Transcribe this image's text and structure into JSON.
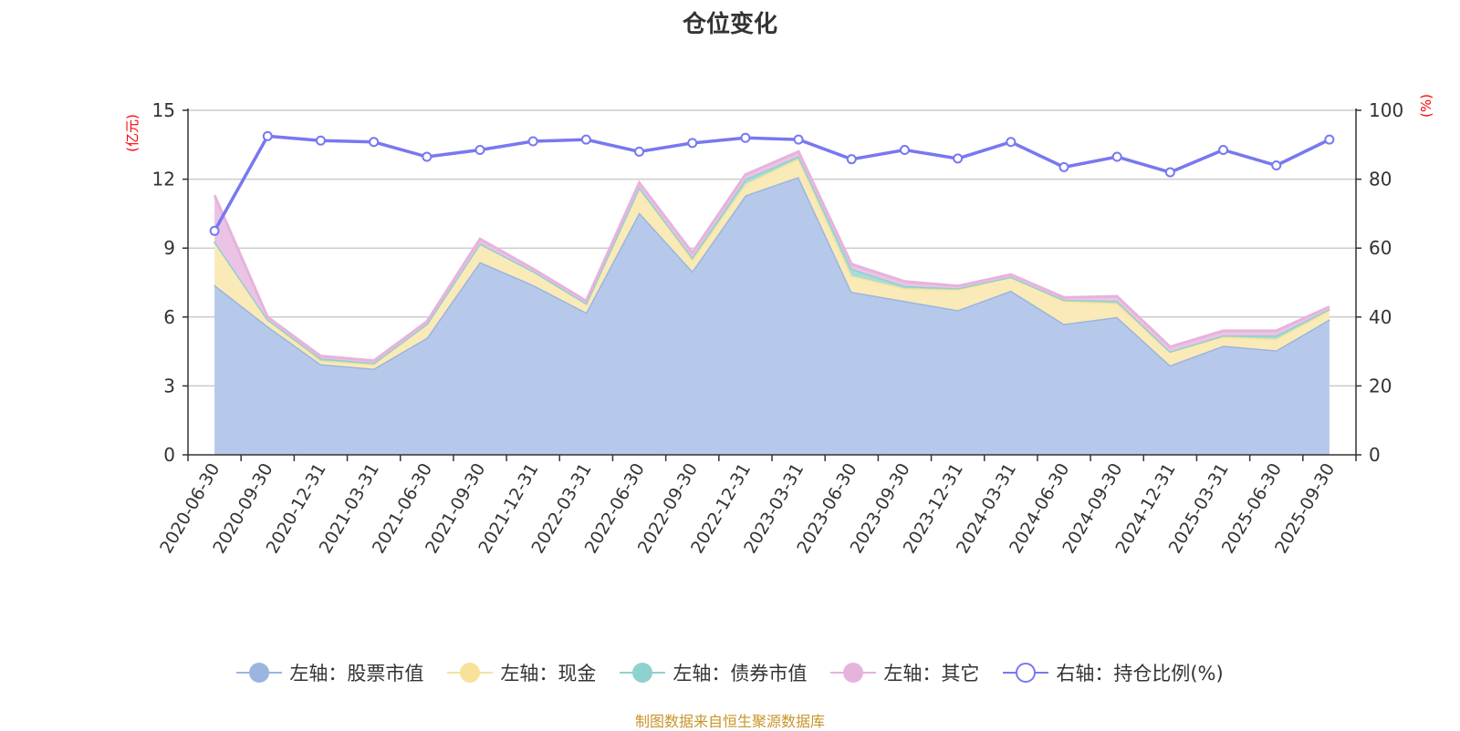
{
  "chart_data": {
    "type": "area",
    "title": "仓位变化",
    "source": "制图数据来自恒生聚源数据库",
    "left_axis": {
      "unit": "(亿元)",
      "ylim": [
        0,
        15
      ],
      "ticks": [
        "0",
        "3",
        "6",
        "9",
        "12",
        "15"
      ]
    },
    "right_axis": {
      "unit": "(%)",
      "ylim": [
        0,
        100
      ],
      "ticks": [
        "0",
        "20",
        "40",
        "60",
        "80",
        "100"
      ]
    },
    "categories": [
      "2020-06-30",
      "2020-09-30",
      "2020-12-31",
      "2021-03-31",
      "2021-06-30",
      "2021-09-30",
      "2021-12-31",
      "2022-03-31",
      "2022-06-30",
      "2022-09-30",
      "2022-12-31",
      "2023-03-31",
      "2023-06-30",
      "2023-09-30",
      "2023-12-31",
      "2024-03-31",
      "2024-06-30",
      "2024-09-30",
      "2024-12-31",
      "2025-03-31",
      "2025-06-30",
      "2025-09-30"
    ],
    "series": [
      {
        "name": "左轴：股票市值",
        "axis": "left",
        "kind": "stacked-area",
        "color": "#9ab5e0",
        "fill": "#b6c9ea",
        "values": [
          7.4,
          5.6,
          3.95,
          3.75,
          5.1,
          8.4,
          7.4,
          6.2,
          10.55,
          8.0,
          11.3,
          12.1,
          7.1,
          6.7,
          6.3,
          7.15,
          5.7,
          6.0,
          3.9,
          4.75,
          4.55,
          5.9
        ]
      },
      {
        "name": "左轴：现金",
        "axis": "left",
        "kind": "stacked-area",
        "color": "#f7e29a",
        "fill": "#faeab7",
        "values": [
          1.9,
          0.3,
          0.15,
          0.2,
          0.6,
          0.8,
          0.6,
          0.4,
          1.1,
          0.5,
          0.5,
          0.8,
          0.7,
          0.55,
          0.9,
          0.6,
          1.0,
          0.6,
          0.6,
          0.4,
          0.5,
          0.4
        ]
      },
      {
        "name": "左轴：债券市值",
        "axis": "left",
        "kind": "stacked-area",
        "color": "#8fd1ce",
        "fill": "#a7dcd9",
        "values": [
          0,
          0,
          0.1,
          0.05,
          0,
          0,
          0,
          0,
          0,
          0.1,
          0.2,
          0.1,
          0.3,
          0.1,
          0.05,
          0,
          0.05,
          0.1,
          0,
          0.05,
          0.15,
          0.05
        ]
      },
      {
        "name": "左轴：其它",
        "axis": "left",
        "kind": "stacked-area",
        "color": "#e6b3dc",
        "fill": "#ebc3e4",
        "values": [
          2.0,
          0.1,
          0.1,
          0.1,
          0.1,
          0.2,
          0.1,
          0.1,
          0.2,
          0.2,
          0.2,
          0.2,
          0.2,
          0.2,
          0.1,
          0.1,
          0.1,
          0.2,
          0.2,
          0.2,
          0.2,
          0.1
        ]
      },
      {
        "name": "右轴：持仓比例(%)",
        "axis": "right",
        "kind": "line",
        "color": "#7878f0",
        "values": [
          65,
          92.5,
          91.2,
          90.8,
          86.5,
          88.5,
          91,
          91.5,
          88,
          90.5,
          92,
          91.5,
          85.8,
          88.5,
          86,
          90.8,
          83.5,
          86.5,
          82,
          88.5,
          84,
          91.5
        ]
      }
    ]
  }
}
